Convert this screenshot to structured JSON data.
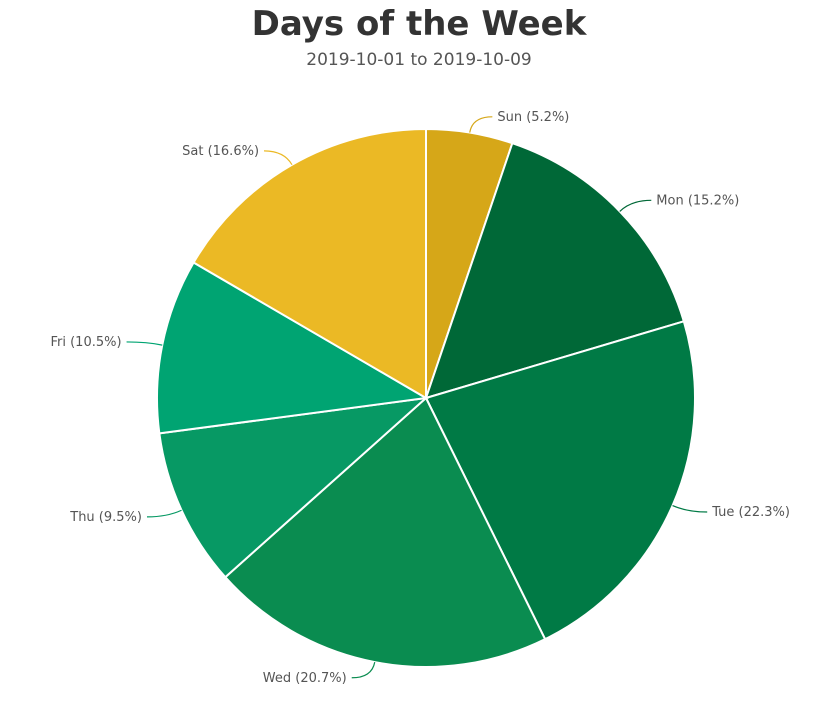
{
  "chart_data": {
    "type": "pie",
    "title": "Days of the Week",
    "subtitle": "2019-10-01 to 2019-10-09",
    "slices": [
      {
        "label": "Sun",
        "value": 5.2,
        "display": "Sun (5.2%)",
        "color": "#d6a718"
      },
      {
        "label": "Mon",
        "value": 15.2,
        "display": "Mon (15.2%)",
        "color": "#006837"
      },
      {
        "label": "Tue",
        "value": 22.3,
        "display": "Tue (22.3%)",
        "color": "#007a45"
      },
      {
        "label": "Wed",
        "value": 20.7,
        "display": "Wed (20.7%)",
        "color": "#0a8c50"
      },
      {
        "label": "Thu",
        "value": 9.5,
        "display": "Thu (9.5%)",
        "color": "#079964"
      },
      {
        "label": "Fri",
        "value": 10.5,
        "display": "Fri (10.5%)",
        "color": "#00a472"
      },
      {
        "label": "Sat",
        "value": 16.6,
        "display": "Sat (16.6%)",
        "color": "#ebb925"
      }
    ]
  }
}
